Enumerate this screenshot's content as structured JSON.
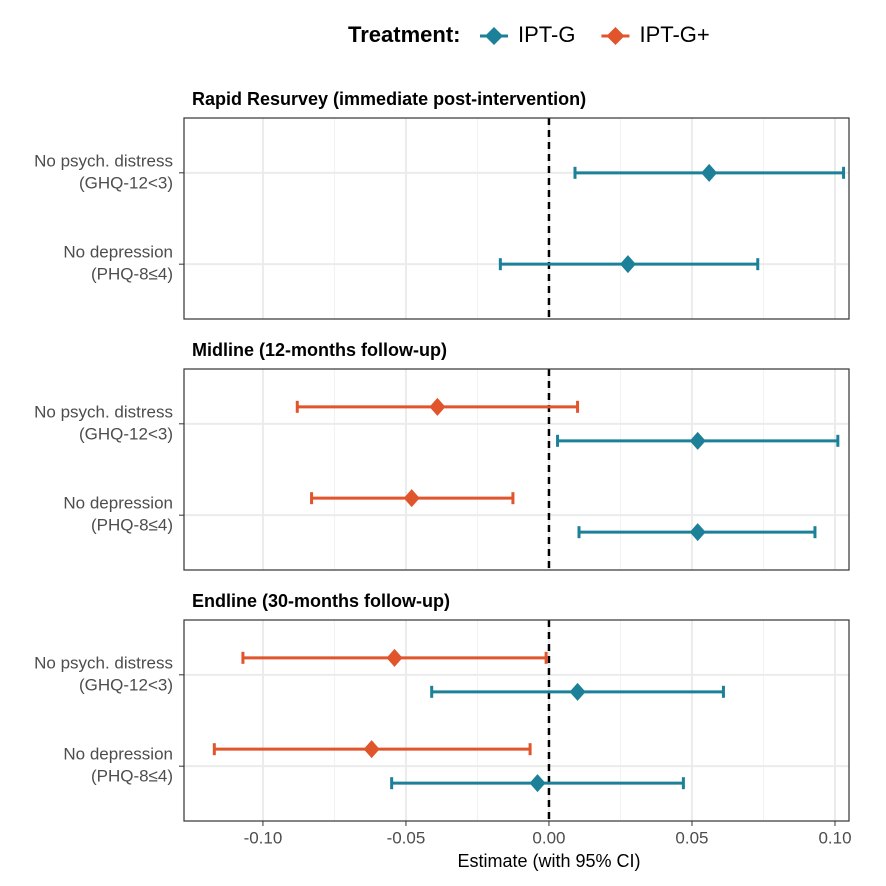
{
  "chart_data": {
    "type": "forest",
    "legend_title": "Treatment:",
    "series": [
      {
        "name": "IPT-G",
        "color": "#1b8098"
      },
      {
        "name": "IPT-G+",
        "color": "#e0552b"
      }
    ],
    "categories": [
      [
        "No psych. distress",
        "(GHQ-12<3)"
      ],
      [
        "No depression",
        "(PHQ-8≤4)"
      ]
    ],
    "xlabel": "Estimate (with 95% CI)",
    "xlim": [
      -0.1276,
      0.1049
    ],
    "xticks": [
      {
        "value": -0.1,
        "label": "-0.10"
      },
      {
        "value": -0.05,
        "label": "-0.05"
      },
      {
        "value": 0,
        "label": "0.00"
      },
      {
        "value": 0.05,
        "label": "0.05"
      },
      {
        "value": 0.1,
        "label": "0.10"
      }
    ],
    "reference_line": 0,
    "grid": true,
    "panels": [
      {
        "title": "Rapid Resurvey (immediate post-intervention)",
        "series": [
          {
            "name": "IPT-G",
            "values": [
              0.056,
              0.0276
            ],
            "lower": [
              0.0091,
              -0.017
            ],
            "upper": [
              0.103,
              0.073
            ]
          }
        ]
      },
      {
        "title": "Midline (12-months follow-up)",
        "series": [
          {
            "name": "IPT-G+",
            "values": [
              -0.039,
              -0.048
            ],
            "lower": [
              -0.088,
              -0.083
            ],
            "upper": [
              0.01,
              -0.0126
            ]
          },
          {
            "name": "IPT-G",
            "values": [
              0.052,
              0.052
            ],
            "lower": [
              0.003,
              0.0105
            ],
            "upper": [
              0.101,
              0.093
            ]
          }
        ]
      },
      {
        "title": "Endline (30-months follow-up)",
        "series": [
          {
            "name": "IPT-G+",
            "values": [
              -0.054,
              -0.062
            ],
            "lower": [
              -0.107,
              -0.117
            ],
            "upper": [
              -0.001,
              -0.0066
            ]
          },
          {
            "name": "IPT-G",
            "values": [
              0.01,
              -0.004
            ],
            "lower": [
              -0.041,
              -0.055
            ],
            "upper": [
              0.061,
              0.047
            ]
          }
        ]
      }
    ]
  }
}
